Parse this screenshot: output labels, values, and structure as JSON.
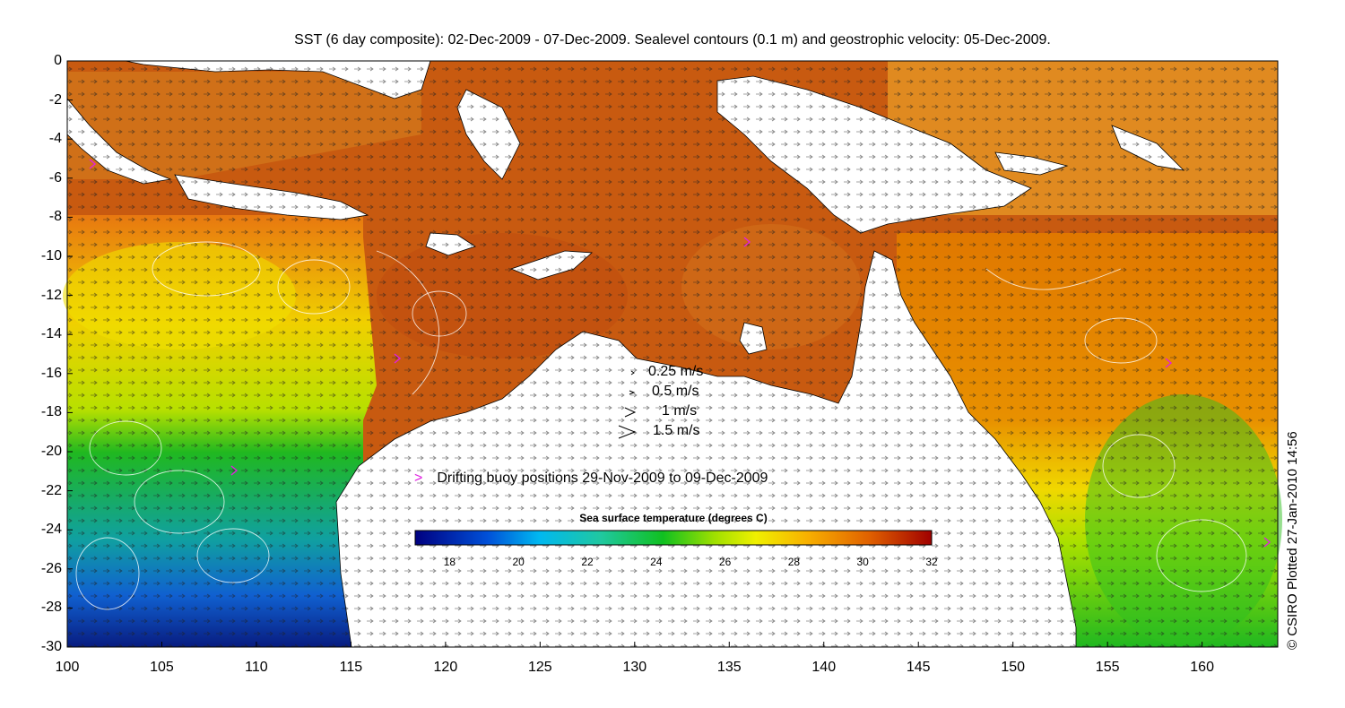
{
  "title": "SST (6 day composite): 02-Dec-2009 - 07-Dec-2009. Sealevel contours (0.1 m) and geostrophic velocity: 05-Dec-2009.",
  "x_ticks": [
    "100",
    "105",
    "110",
    "115",
    "120",
    "125",
    "130",
    "135",
    "140",
    "145",
    "150",
    "155",
    "160"
  ],
  "y_ticks": [
    "0",
    "-2",
    "-4",
    "-6",
    "-8",
    "-10",
    "-12",
    "-14",
    "-16",
    "-18",
    "-20",
    "-22",
    "-24",
    "-26",
    "-28",
    "-30"
  ],
  "velocity_legend": [
    "0.25 m/s",
    "0.5 m/s",
    "1 m/s",
    "1.5 m/s"
  ],
  "buoy_marker": ">",
  "buoy_label": "Drifting buoy positions 29-Nov-2009 to 09-Dec-2009",
  "colorbar": {
    "title": "Sea surface temperature (degrees C)",
    "ticks": [
      "18",
      "20",
      "22",
      "24",
      "26",
      "28",
      "30",
      "32"
    ],
    "range": [
      17,
      32
    ]
  },
  "credit": "© CSIRO Plotted 27-Jan-2010 14:56",
  "colors": {
    "cold": "#08208c",
    "mid": "#10c030",
    "warm": "#e89000",
    "hot": "#a02000",
    "buoy": "#e020e0"
  }
}
